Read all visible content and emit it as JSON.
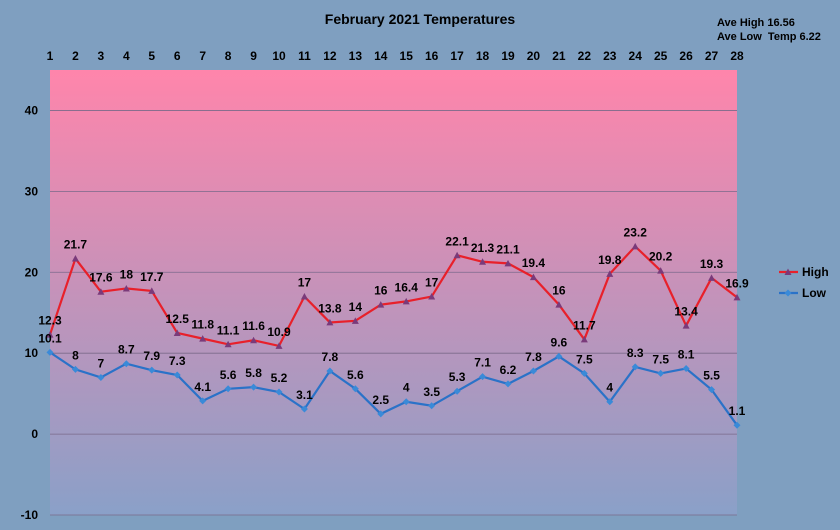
{
  "chart_data": {
    "type": "line",
    "title": "February 2021 Temperatures",
    "annotations": [
      "Ave High 16.56",
      "Ave Low  Temp 6.22"
    ],
    "x": [
      1,
      2,
      3,
      4,
      5,
      6,
      7,
      8,
      9,
      10,
      11,
      12,
      13,
      14,
      15,
      16,
      17,
      18,
      19,
      20,
      21,
      22,
      23,
      24,
      25,
      26,
      27,
      28
    ],
    "ylim": [
      -10,
      45
    ],
    "yticks": [
      -10,
      0,
      10,
      20,
      30,
      40
    ],
    "xaxis_position": "top",
    "grid": true,
    "legend_position": "right",
    "series": [
      {
        "name": "High",
        "color": "#e8202a",
        "values": [
          12.3,
          21.7,
          17.6,
          18,
          17.7,
          12.5,
          11.8,
          11.1,
          11.6,
          10.9,
          17,
          13.8,
          14,
          16,
          16.4,
          17,
          22.1,
          21.3,
          21.1,
          19.4,
          16,
          11.7,
          19.8,
          23.2,
          20.2,
          13.4,
          19.3,
          16.9
        ]
      },
      {
        "name": "Low",
        "color": "#2a72c8",
        "values": [
          10.1,
          8,
          7,
          8.7,
          7.9,
          7.3,
          4.1,
          5.6,
          5.8,
          5.2,
          3.1,
          7.8,
          5.6,
          2.5,
          4,
          3.5,
          5.3,
          7.1,
          6.2,
          7.8,
          9.6,
          7.5,
          4,
          8.3,
          7.5,
          8.1,
          5.5,
          1.1
        ]
      }
    ],
    "colors": {
      "background": "#7f9fc0",
      "plot_top": "#ff85ab",
      "plot_bottom": "#8aa0c8",
      "grid": "#7a6a8a"
    }
  }
}
